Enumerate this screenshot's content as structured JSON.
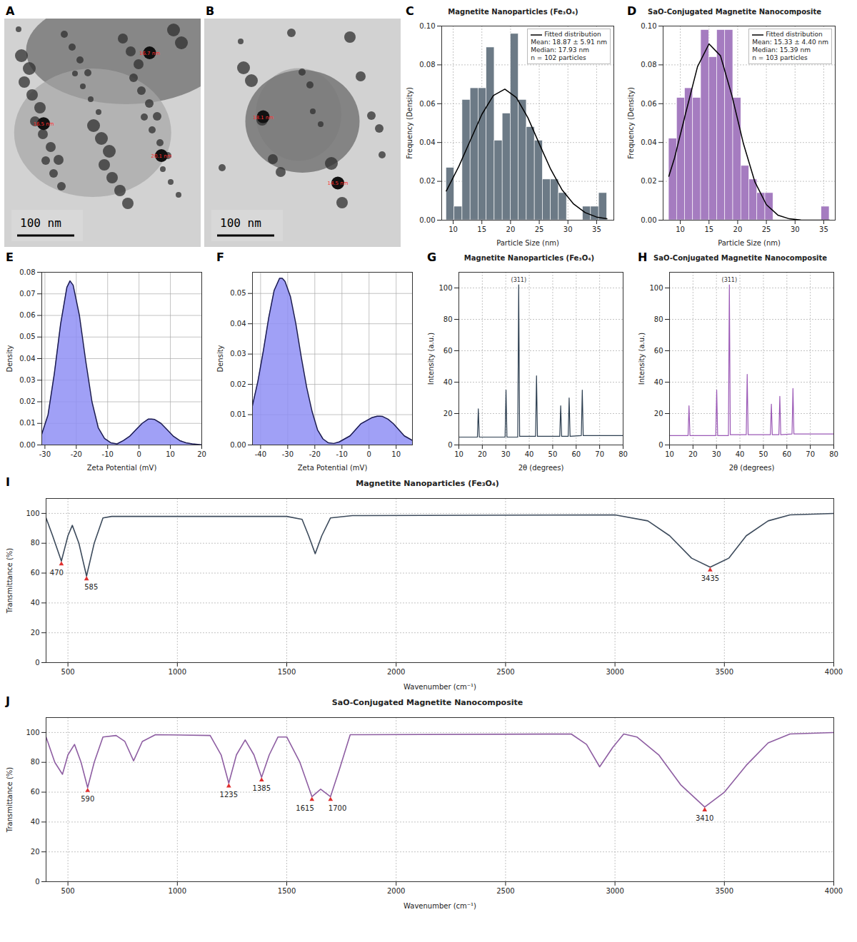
{
  "chart_data": [
    {
      "panel": "A",
      "type": "image",
      "scale_bar": "100 nm",
      "annotations": [
        "16.7 nm",
        "16.5 nm",
        "20.1 nm"
      ]
    },
    {
      "panel": "B",
      "type": "image",
      "scale_bar": "100 nm",
      "annotations": [
        "18.1 nm",
        "14.5 nm"
      ]
    },
    {
      "panel": "C",
      "type": "histogram",
      "title": "Magnetite Nanoparticles (Fe₃O₄)",
      "xlabel": "Particle Size (nm)",
      "ylabel": "Frequency (Density)",
      "bins": [
        8.8,
        10.2,
        11.6,
        13.0,
        14.4,
        15.8,
        17.2,
        18.6,
        20.0,
        21.4,
        22.8,
        24.2,
        25.6,
        27.0,
        28.4,
        29.8,
        31.2,
        32.6,
        34.0,
        35.4,
        36.8
      ],
      "values": [
        0.027,
        0.007,
        0.062,
        0.068,
        0.068,
        0.089,
        0.041,
        0.055,
        0.096,
        0.062,
        0.048,
        0.041,
        0.021,
        0.021,
        0.014,
        0,
        0,
        0.007,
        0.007,
        0.014
      ],
      "color": "#6c7a86",
      "fit": {
        "name": "Fitted distribution",
        "color": "#000000",
        "x": [
          8.8,
          11,
          13,
          15,
          17,
          19,
          21,
          23,
          25,
          27,
          29,
          31,
          33,
          35,
          36.8
        ],
        "values": [
          0.015,
          0.0278,
          0.0412,
          0.0545,
          0.0642,
          0.0675,
          0.0632,
          0.0529,
          0.0394,
          0.0262,
          0.0155,
          0.0083,
          0.0039,
          0.0016,
          0.0007
        ]
      },
      "stats": [
        "Mean: 18.87 ± 5.91 nm",
        "Median: 17.93 nm",
        "n = 102 particles"
      ],
      "legend": "top right",
      "xlim": [
        8,
        38
      ],
      "xticks": [
        10,
        15,
        20,
        25,
        30,
        35
      ],
      "ylim": [
        0,
        0.1
      ],
      "yticks": [
        {
          "value": 0,
          "label": "0.00"
        },
        {
          "value": 0.02,
          "label": "0.02"
        },
        {
          "value": 0.04,
          "label": "0.04"
        },
        {
          "value": 0.06,
          "label": "0.06"
        },
        {
          "value": 0.08,
          "label": "0.08"
        },
        {
          "value": 0.1,
          "label": "0.10"
        }
      ],
      "grid": true
    },
    {
      "panel": "D",
      "type": "histogram",
      "title": "SaO-Conjugated Magnetite Nanocomposite",
      "xlabel": "Particle Size (nm)",
      "ylabel": "Frequency (Density)",
      "bins": [
        8.0,
        9.4,
        10.8,
        12.2,
        13.6,
        15.0,
        16.4,
        17.8,
        19.2,
        20.6,
        22.0,
        23.4,
        24.8,
        26.2,
        27.6,
        29.0,
        30.4,
        31.8,
        33.2,
        34.6,
        36.0
      ],
      "values": [
        0.042,
        0.063,
        0.068,
        0.063,
        0.098,
        0.084,
        0.098,
        0.098,
        0.063,
        0.028,
        0.021,
        0.014,
        0.014,
        0,
        0,
        0,
        0,
        0,
        0,
        0.007
      ],
      "color": "#a57cc0",
      "fit": {
        "name": "Fitted distribution",
        "color": "#000000",
        "x": [
          8,
          9,
          11,
          13,
          15,
          17,
          19,
          21,
          23,
          25,
          27,
          29,
          31,
          33,
          35,
          36
        ],
        "values": [
          0.0226,
          0.0321,
          0.0559,
          0.0791,
          0.0908,
          0.0847,
          0.0641,
          0.0394,
          0.0197,
          0.008,
          0.0026,
          0.0007,
          0.0001,
          0,
          0,
          0
        ]
      },
      "stats": [
        "Mean: 15.33 ± 4.40 nm",
        "Median: 15.39 nm",
        "n = 103 particles"
      ],
      "legend": "top right",
      "xlim": [
        7,
        37
      ],
      "xticks": [
        10,
        15,
        20,
        25,
        30,
        35
      ],
      "ylim": [
        0,
        0.1
      ],
      "yticks": [
        {
          "value": 0,
          "label": "0.00"
        },
        {
          "value": 0.02,
          "label": "0.02"
        },
        {
          "value": 0.04,
          "label": "0.04"
        },
        {
          "value": 0.06,
          "label": "0.06"
        },
        {
          "value": 0.08,
          "label": "0.08"
        },
        {
          "value": 0.1,
          "label": "0.10"
        }
      ],
      "grid": true
    },
    {
      "panel": "E",
      "type": "area",
      "xlabel": "Zeta Potential (mV)",
      "ylabel": "Density",
      "color": "#8f8ff5",
      "x": [
        -31,
        -29,
        -27,
        -25,
        -23,
        -22,
        -21,
        -19,
        -17,
        -15,
        -13,
        -11,
        -9,
        -7,
        -5,
        -3,
        -1,
        1,
        3,
        4,
        5,
        7,
        9,
        11,
        13,
        15,
        17,
        20
      ],
      "values": [
        0.005,
        0.014,
        0.033,
        0.056,
        0.073,
        0.076,
        0.074,
        0.06,
        0.039,
        0.02,
        0.008,
        0.003,
        0.001,
        0.0005,
        0.002,
        0.004,
        0.007,
        0.01,
        0.012,
        0.012,
        0.0118,
        0.01,
        0.007,
        0.004,
        0.002,
        0.001,
        0.0005,
        0.0001
      ],
      "xlim": [
        -31,
        20
      ],
      "xticks": [
        -30,
        -20,
        -10,
        0,
        10,
        20
      ],
      "ylim": [
        0,
        0.08
      ],
      "yticks": [
        {
          "value": 0,
          "label": "0.00"
        },
        {
          "value": 0.01,
          "label": "0.01"
        },
        {
          "value": 0.02,
          "label": "0.02"
        },
        {
          "value": 0.03,
          "label": "0.03"
        },
        {
          "value": 0.04,
          "label": "0.04"
        },
        {
          "value": 0.05,
          "label": "0.05"
        },
        {
          "value": 0.06,
          "label": "0.06"
        },
        {
          "value": 0.07,
          "label": "0.07"
        },
        {
          "value": 0.08,
          "label": "0.08"
        }
      ],
      "grid": true
    },
    {
      "panel": "F",
      "type": "area",
      "xlabel": "Zeta Potential (mV)",
      "ylabel": "Density",
      "color": "#8f8ff5",
      "x": [
        -43,
        -41,
        -39,
        -37,
        -35,
        -33,
        -32,
        -31,
        -29,
        -27,
        -25,
        -23,
        -21,
        -19,
        -17,
        -15,
        -13,
        -11,
        -9,
        -7,
        -5,
        -3,
        -1,
        1,
        3,
        4,
        5,
        7,
        9,
        11,
        13,
        15,
        16
      ],
      "values": [
        0.013,
        0.021,
        0.031,
        0.042,
        0.051,
        0.055,
        0.055,
        0.054,
        0.049,
        0.04,
        0.029,
        0.019,
        0.011,
        0.005,
        0.002,
        0.0007,
        0.0005,
        0.001,
        0.002,
        0.003,
        0.005,
        0.007,
        0.008,
        0.009,
        0.0095,
        0.0095,
        0.0094,
        0.0085,
        0.007,
        0.005,
        0.003,
        0.002,
        0.0015
      ],
      "xlim": [
        -43,
        16
      ],
      "xticks": [
        -40,
        -30,
        -20,
        -10,
        0,
        10
      ],
      "ylim": [
        0,
        0.057
      ],
      "yticks": [
        {
          "value": 0,
          "label": "0.00"
        },
        {
          "value": 0.01,
          "label": "0.01"
        },
        {
          "value": 0.02,
          "label": "0.02"
        },
        {
          "value": 0.03,
          "label": "0.03"
        },
        {
          "value": 0.04,
          "label": "0.04"
        },
        {
          "value": 0.05,
          "label": "0.05"
        }
      ],
      "grid": true
    },
    {
      "panel": "G",
      "type": "line",
      "title": "Magnetite Nanoparticles (Fe₃O₄)",
      "xlabel": "2θ (degrees)",
      "ylabel": "Intensity (a.u.)",
      "color": "#2c3e50",
      "x": [
        10,
        17.9,
        18.3,
        18.7,
        29.7,
        30.1,
        30.5,
        35.1,
        35.5,
        35.9,
        42.7,
        43.1,
        43.5,
        53.0,
        53.4,
        53.8,
        56.6,
        57.0,
        57.4,
        62.2,
        62.6,
        63.0,
        80
      ],
      "values": [
        5,
        5,
        23,
        5,
        5,
        35,
        5,
        5,
        102,
        5.5,
        5.5,
        44,
        5.5,
        5.5,
        25,
        5.5,
        5.5,
        30,
        5.5,
        6,
        35,
        6,
        6
      ],
      "annotations": [
        {
          "x": 35.5,
          "y": 102,
          "text": "(311)"
        }
      ],
      "xlim": [
        10,
        80
      ],
      "xticks": [
        10,
        20,
        30,
        40,
        50,
        60,
        70,
        80
      ],
      "ylim": [
        0,
        110
      ],
      "yticks": [
        0,
        20,
        40,
        60,
        80,
        100
      ],
      "grid": true
    },
    {
      "panel": "H",
      "type": "line",
      "title": "SaO-Conjugated Magnetite Nanocomposite",
      "xlabel": "2θ (degrees)",
      "ylabel": "Intensity (a.u.)",
      "color": "#9b59b6",
      "x": [
        10,
        17.9,
        18.3,
        18.7,
        29.7,
        30.1,
        30.5,
        35.1,
        35.5,
        35.9,
        42.7,
        43.1,
        43.5,
        53.0,
        53.4,
        53.8,
        56.6,
        57.0,
        57.4,
        62.2,
        62.6,
        63.0,
        80
      ],
      "values": [
        6,
        6,
        25,
        6,
        6,
        35,
        6,
        6,
        102,
        6.5,
        6.5,
        45,
        6.5,
        6.5,
        26,
        6.5,
        6.5,
        31,
        6.5,
        7,
        36,
        7,
        7
      ],
      "annotations": [
        {
          "x": 35.5,
          "y": 102,
          "text": "(311)"
        }
      ],
      "xlim": [
        10,
        80
      ],
      "xticks": [
        10,
        20,
        30,
        40,
        50,
        60,
        70,
        80
      ],
      "ylim": [
        0,
        110
      ],
      "yticks": [
        0,
        20,
        40,
        60,
        80,
        100
      ],
      "grid": true
    },
    {
      "panel": "I",
      "type": "spectrum",
      "title": "Magnetite Nanoparticles (Fe₃O₄)",
      "xlabel": "Wavenumber (cm⁻¹)",
      "ylabel": "Transmittance (%)",
      "color": "#3d4b5c",
      "x": [
        400,
        430,
        470,
        500,
        520,
        550,
        585,
        620,
        660,
        700,
        1500,
        1570,
        1600,
        1630,
        1660,
        1700,
        1800,
        3000,
        3150,
        3250,
        3350,
        3435,
        3520,
        3600,
        3700,
        3800,
        4000
      ],
      "values": [
        97,
        85,
        68,
        85,
        92,
        80,
        58,
        80,
        97,
        98,
        98,
        96,
        85,
        73,
        85,
        97,
        98.5,
        99,
        95,
        85,
        70,
        64,
        70,
        85,
        95,
        99,
        100
      ],
      "peaks": [
        {
          "x": 470,
          "y": 68
        },
        {
          "x": 585,
          "y": 58
        },
        {
          "x": 3435,
          "y": 64
        }
      ],
      "xlim": [
        400,
        4000
      ],
      "xticks": [
        500,
        1000,
        1500,
        2000,
        2500,
        3000,
        3500,
        4000
      ],
      "ylim": [
        0,
        110
      ],
      "yticks": [
        0,
        20,
        40,
        60,
        80,
        100
      ],
      "grid": true
    },
    {
      "panel": "J",
      "type": "spectrum",
      "title": "SaO-Conjugated Magnetite Nanocomposite",
      "xlabel": "Wavenumber (cm⁻¹)",
      "ylabel": "Transmittance (%)",
      "color": "#8e5ea2",
      "x": [
        400,
        440,
        475,
        500,
        530,
        560,
        590,
        620,
        660,
        720,
        760,
        800,
        840,
        900,
        1150,
        1200,
        1235,
        1270,
        1310,
        1350,
        1385,
        1420,
        1460,
        1500,
        1560,
        1615,
        1655,
        1700,
        1740,
        1790,
        2800,
        2870,
        2930,
        2990,
        3040,
        3100,
        3200,
        3300,
        3410,
        3500,
        3600,
        3700,
        3800,
        4000
      ],
      "values": [
        97,
        80,
        72,
        85,
        92,
        80,
        63,
        80,
        97,
        98,
        94,
        81,
        94,
        98.5,
        98,
        85,
        66,
        85,
        95,
        85,
        70,
        85,
        97,
        97,
        80,
        57,
        62,
        57,
        75,
        98.5,
        99,
        92,
        77,
        90,
        99,
        97,
        85,
        65,
        50,
        60,
        78,
        93,
        99,
        100
      ],
      "peaks": [
        {
          "x": 590,
          "y": 63
        },
        {
          "x": 1235,
          "y": 66
        },
        {
          "x": 1385,
          "y": 70
        },
        {
          "x": 1615,
          "y": 57
        },
        {
          "x": 1700,
          "y": 57
        },
        {
          "x": 3410,
          "y": 50
        }
      ],
      "xlim": [
        400,
        4000
      ],
      "xticks": [
        500,
        1000,
        1500,
        2000,
        2500,
        3000,
        3500,
        4000
      ],
      "ylim": [
        0,
        110
      ],
      "yticks": [
        0,
        20,
        40,
        60,
        80,
        100
      ],
      "grid": true
    }
  ]
}
